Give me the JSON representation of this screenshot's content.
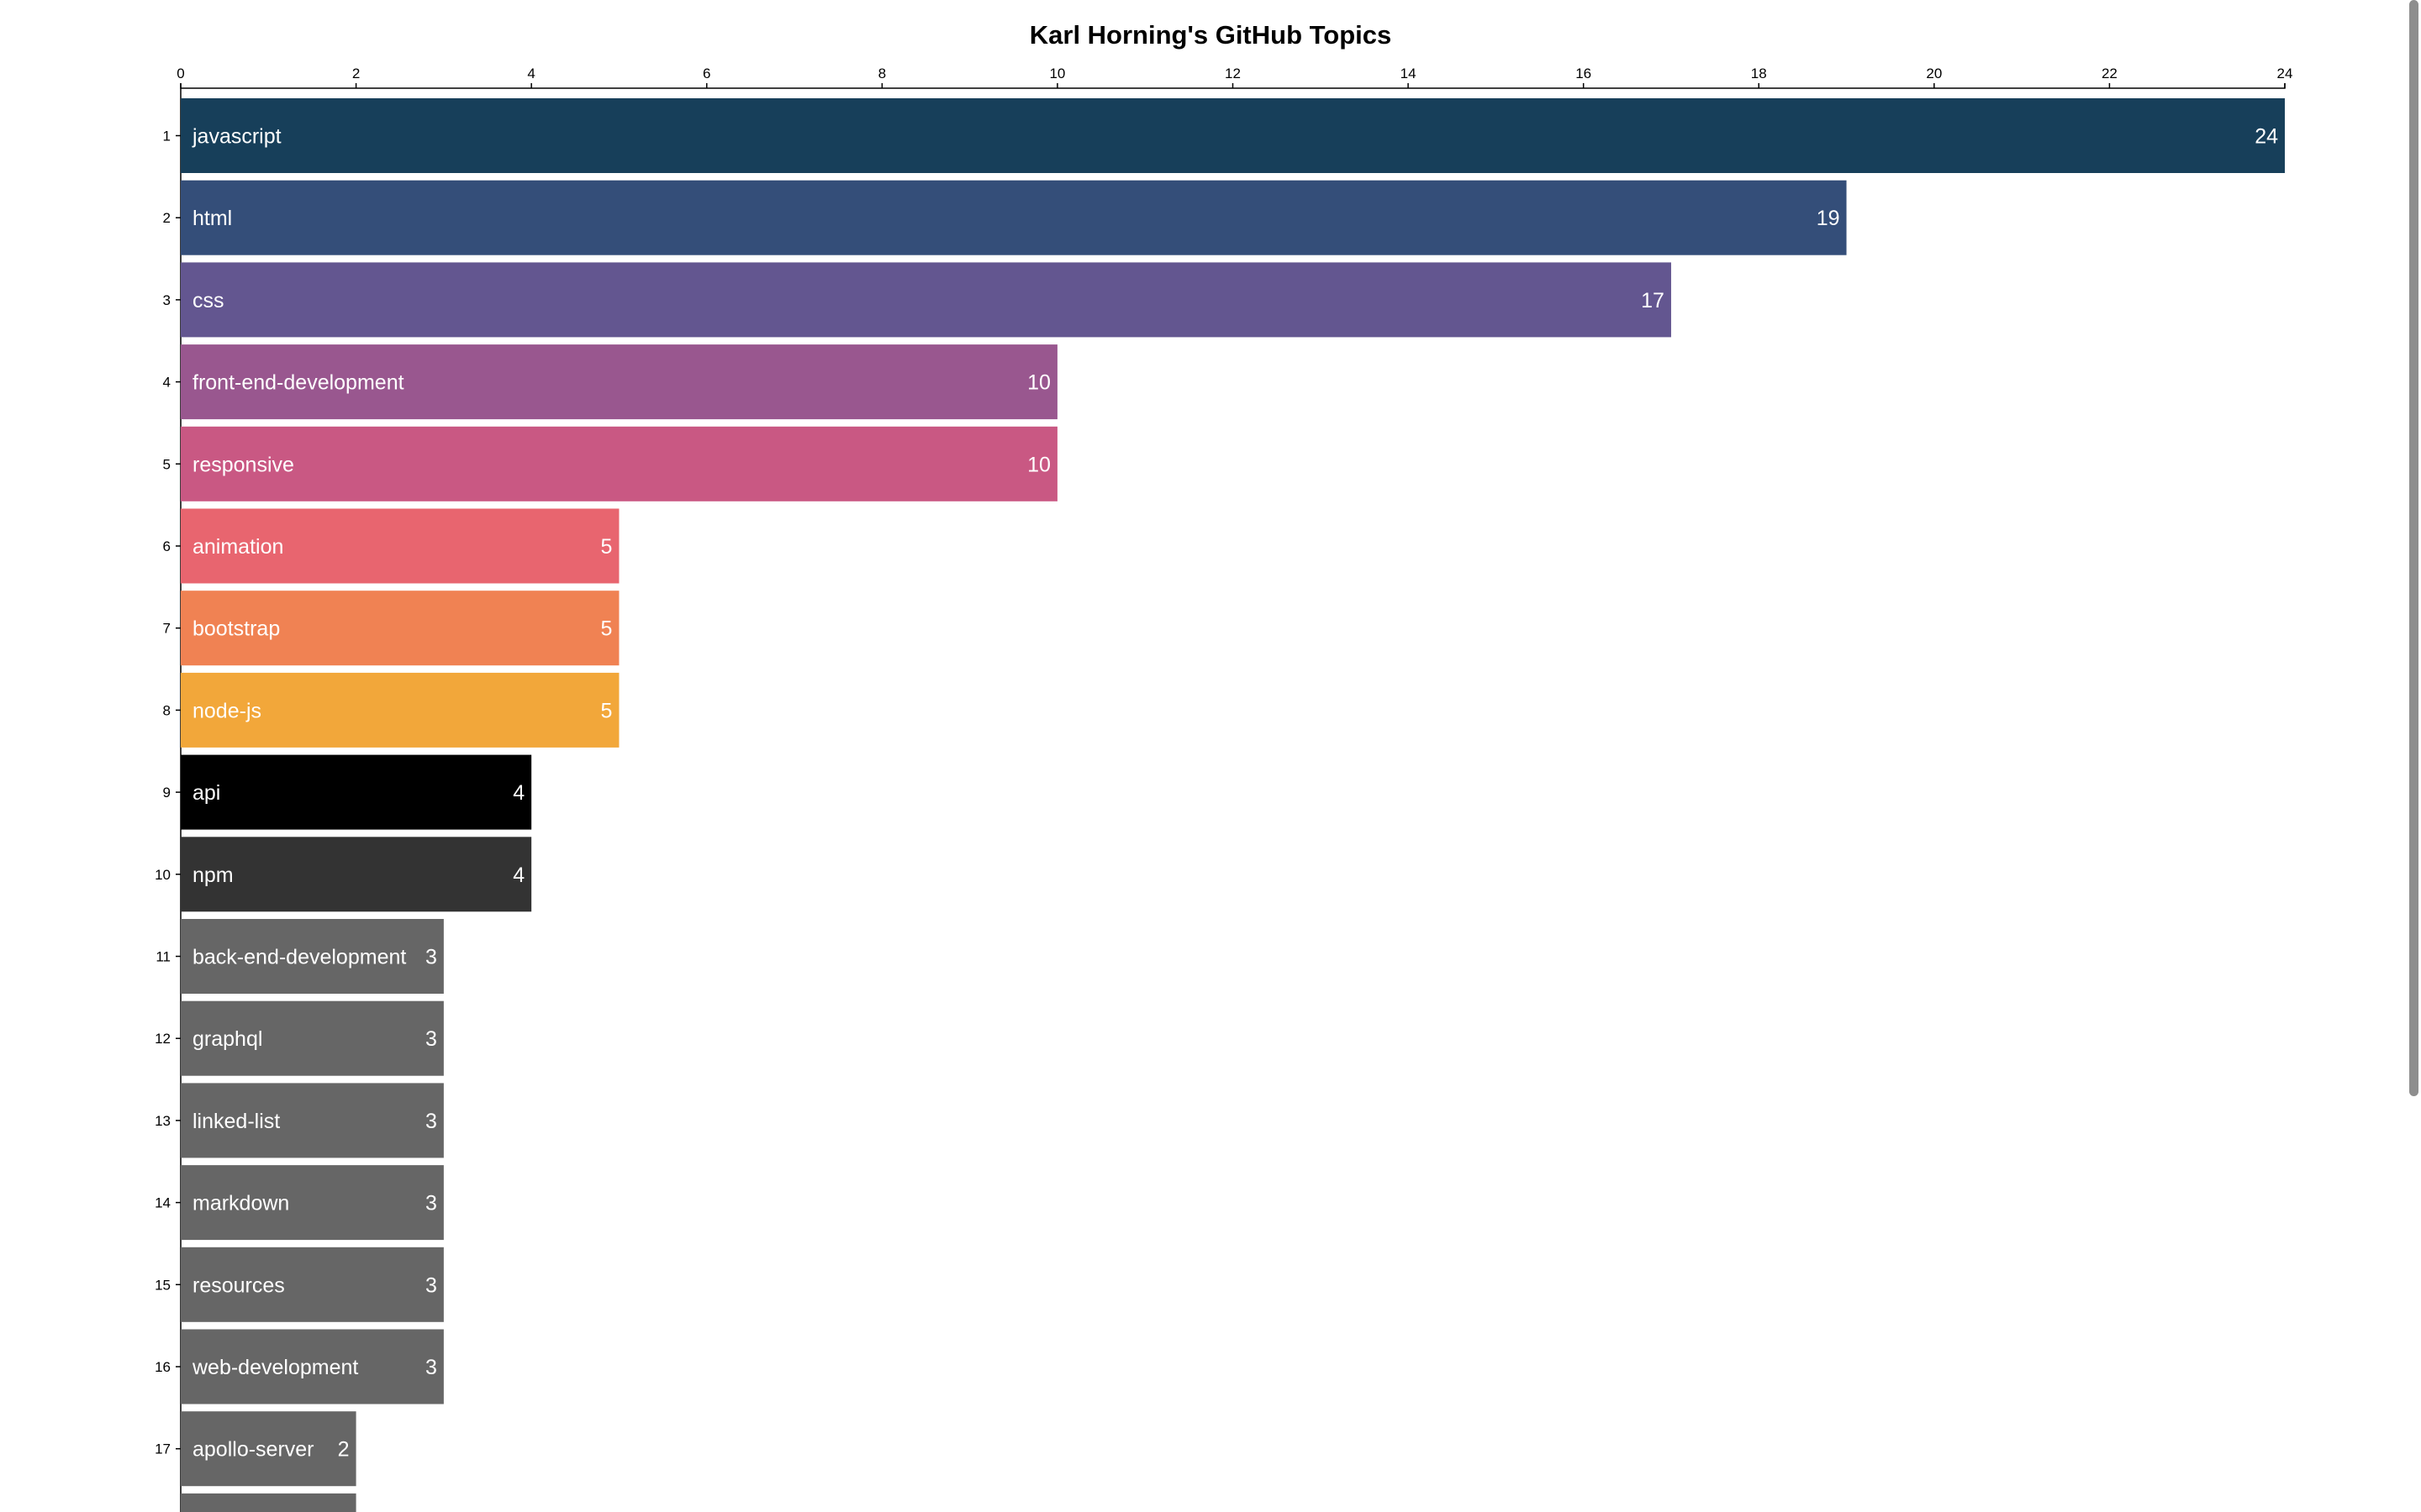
{
  "chart_data": {
    "type": "bar",
    "orientation": "horizontal",
    "title": "Karl Horning's GitHub Topics",
    "xlim": [
      0,
      24
    ],
    "x_ticks": [
      0,
      2,
      4,
      6,
      8,
      10,
      12,
      14,
      16,
      18,
      20,
      22,
      24
    ],
    "x_axis_position": "top",
    "grid": false,
    "categories": [
      "javascript",
      "html",
      "css",
      "front-end-development",
      "responsive",
      "animation",
      "bootstrap",
      "node-js",
      "api",
      "npm",
      "back-end-development",
      "graphql",
      "linked-list",
      "markdown",
      "resources",
      "web-development",
      "apollo-server",
      ""
    ],
    "ranks": [
      "1",
      "2",
      "3",
      "4",
      "5",
      "6",
      "7",
      "8",
      "9",
      "10",
      "11",
      "12",
      "13",
      "14",
      "15",
      "16",
      "17",
      ""
    ],
    "values": [
      24,
      19,
      17,
      10,
      10,
      5,
      5,
      5,
      4,
      4,
      3,
      3,
      3,
      3,
      3,
      3,
      2,
      2
    ],
    "value_labels": [
      "24",
      "19",
      "17",
      "10",
      "10",
      "5",
      "5",
      "5",
      "4",
      "4",
      "3",
      "3",
      "3",
      "3",
      "3",
      "3",
      "2",
      ""
    ],
    "colors": [
      "#173f5a",
      "#344e79",
      "#635690",
      "#99578f",
      "#c95883",
      "#e8656f",
      "#f08253",
      "#f2a73a",
      "#000000",
      "#333333",
      "#666666",
      "#666666",
      "#666666",
      "#666666",
      "#666666",
      "#666666",
      "#666666",
      "#666666"
    ]
  }
}
